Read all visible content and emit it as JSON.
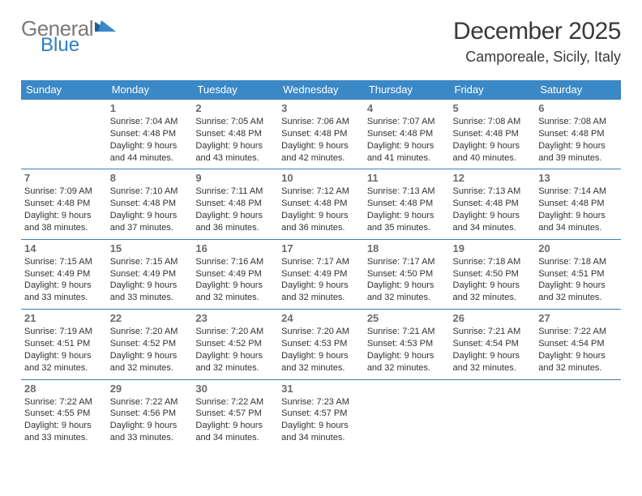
{
  "logo": {
    "word1": "General",
    "word2": "Blue"
  },
  "title": "December 2025",
  "location": "Camporeale, Sicily, Italy",
  "colors": {
    "header_bg": "#3b88c6",
    "header_text": "#ffffff",
    "rule": "#3b7fb8",
    "logo_gray": "#7a7a7a",
    "logo_blue": "#2f7ec2",
    "text": "#323232",
    "daynum": "#6b6b6b",
    "page_bg": "#ffffff"
  },
  "daysOfWeek": [
    "Sunday",
    "Monday",
    "Tuesday",
    "Wednesday",
    "Thursday",
    "Friday",
    "Saturday"
  ],
  "weeks": [
    [
      null,
      {
        "n": "1",
        "sr": "7:04 AM",
        "ss": "4:48 PM",
        "dl": "9 hours and 44 minutes."
      },
      {
        "n": "2",
        "sr": "7:05 AM",
        "ss": "4:48 PM",
        "dl": "9 hours and 43 minutes."
      },
      {
        "n": "3",
        "sr": "7:06 AM",
        "ss": "4:48 PM",
        "dl": "9 hours and 42 minutes."
      },
      {
        "n": "4",
        "sr": "7:07 AM",
        "ss": "4:48 PM",
        "dl": "9 hours and 41 minutes."
      },
      {
        "n": "5",
        "sr": "7:08 AM",
        "ss": "4:48 PM",
        "dl": "9 hours and 40 minutes."
      },
      {
        "n": "6",
        "sr": "7:08 AM",
        "ss": "4:48 PM",
        "dl": "9 hours and 39 minutes."
      }
    ],
    [
      {
        "n": "7",
        "sr": "7:09 AM",
        "ss": "4:48 PM",
        "dl": "9 hours and 38 minutes."
      },
      {
        "n": "8",
        "sr": "7:10 AM",
        "ss": "4:48 PM",
        "dl": "9 hours and 37 minutes."
      },
      {
        "n": "9",
        "sr": "7:11 AM",
        "ss": "4:48 PM",
        "dl": "9 hours and 36 minutes."
      },
      {
        "n": "10",
        "sr": "7:12 AM",
        "ss": "4:48 PM",
        "dl": "9 hours and 36 minutes."
      },
      {
        "n": "11",
        "sr": "7:13 AM",
        "ss": "4:48 PM",
        "dl": "9 hours and 35 minutes."
      },
      {
        "n": "12",
        "sr": "7:13 AM",
        "ss": "4:48 PM",
        "dl": "9 hours and 34 minutes."
      },
      {
        "n": "13",
        "sr": "7:14 AM",
        "ss": "4:48 PM",
        "dl": "9 hours and 34 minutes."
      }
    ],
    [
      {
        "n": "14",
        "sr": "7:15 AM",
        "ss": "4:49 PM",
        "dl": "9 hours and 33 minutes."
      },
      {
        "n": "15",
        "sr": "7:15 AM",
        "ss": "4:49 PM",
        "dl": "9 hours and 33 minutes."
      },
      {
        "n": "16",
        "sr": "7:16 AM",
        "ss": "4:49 PM",
        "dl": "9 hours and 32 minutes."
      },
      {
        "n": "17",
        "sr": "7:17 AM",
        "ss": "4:49 PM",
        "dl": "9 hours and 32 minutes."
      },
      {
        "n": "18",
        "sr": "7:17 AM",
        "ss": "4:50 PM",
        "dl": "9 hours and 32 minutes."
      },
      {
        "n": "19",
        "sr": "7:18 AM",
        "ss": "4:50 PM",
        "dl": "9 hours and 32 minutes."
      },
      {
        "n": "20",
        "sr": "7:18 AM",
        "ss": "4:51 PM",
        "dl": "9 hours and 32 minutes."
      }
    ],
    [
      {
        "n": "21",
        "sr": "7:19 AM",
        "ss": "4:51 PM",
        "dl": "9 hours and 32 minutes."
      },
      {
        "n": "22",
        "sr": "7:20 AM",
        "ss": "4:52 PM",
        "dl": "9 hours and 32 minutes."
      },
      {
        "n": "23",
        "sr": "7:20 AM",
        "ss": "4:52 PM",
        "dl": "9 hours and 32 minutes."
      },
      {
        "n": "24",
        "sr": "7:20 AM",
        "ss": "4:53 PM",
        "dl": "9 hours and 32 minutes."
      },
      {
        "n": "25",
        "sr": "7:21 AM",
        "ss": "4:53 PM",
        "dl": "9 hours and 32 minutes."
      },
      {
        "n": "26",
        "sr": "7:21 AM",
        "ss": "4:54 PM",
        "dl": "9 hours and 32 minutes."
      },
      {
        "n": "27",
        "sr": "7:22 AM",
        "ss": "4:54 PM",
        "dl": "9 hours and 32 minutes."
      }
    ],
    [
      {
        "n": "28",
        "sr": "7:22 AM",
        "ss": "4:55 PM",
        "dl": "9 hours and 33 minutes."
      },
      {
        "n": "29",
        "sr": "7:22 AM",
        "ss": "4:56 PM",
        "dl": "9 hours and 33 minutes."
      },
      {
        "n": "30",
        "sr": "7:22 AM",
        "ss": "4:57 PM",
        "dl": "9 hours and 34 minutes."
      },
      {
        "n": "31",
        "sr": "7:23 AM",
        "ss": "4:57 PM",
        "dl": "9 hours and 34 minutes."
      },
      null,
      null,
      null
    ]
  ],
  "labels": {
    "sunrise": "Sunrise:",
    "sunset": "Sunset:",
    "daylight": "Daylight:"
  }
}
